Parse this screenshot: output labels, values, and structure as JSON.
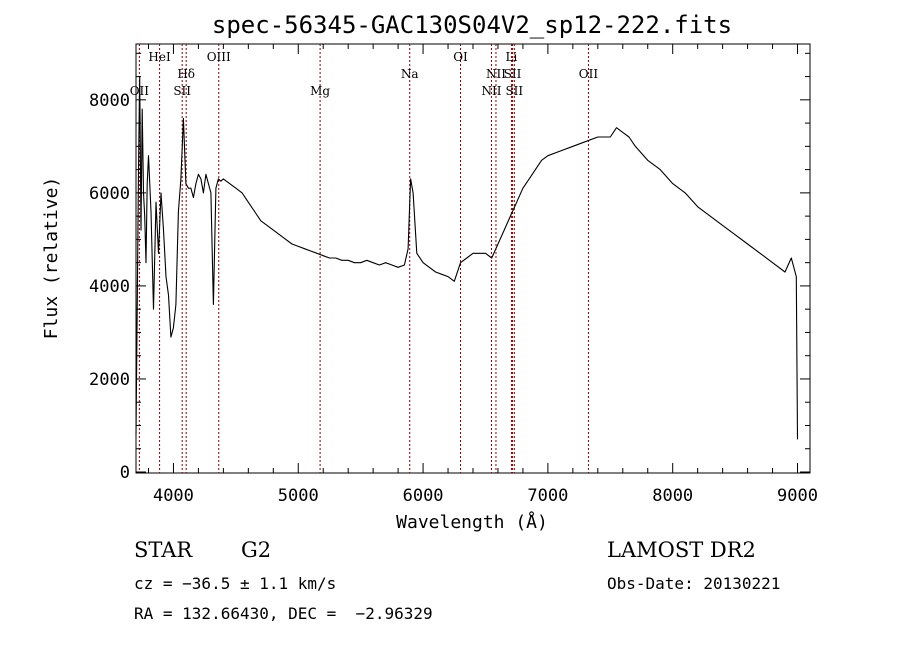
{
  "title": "spec-56345-GAC130S04V2_sp12-222.fits",
  "info": {
    "class": "STAR",
    "subclass": "G2",
    "survey": "LAMOST DR2",
    "redshift": "cz = −36.5 ± 1.1 km/s",
    "obsdate": "Obs-Date: 20130221",
    "coords": "RA = 132.66430, DEC =  −2.96329"
  },
  "chart_data": {
    "type": "line",
    "title": "spec-56345-GAC130S04V2_sp12-222.fits",
    "xlabel": "Wavelength (Å)",
    "ylabel": "Flux (relative)",
    "xlim": [
      3700,
      9100
    ],
    "ylim": [
      0,
      9200
    ],
    "xticks": [
      4000,
      5000,
      6000,
      7000,
      8000,
      9000
    ],
    "yticks": [
      0,
      2000,
      4000,
      6000,
      8000
    ],
    "grid": false,
    "line_color": "#000000",
    "marker_color": "#8b0000",
    "lines": [
      {
        "label": "OII",
        "wave": 3727,
        "row": 3
      },
      {
        "label": "HeI",
        "wave": 3889,
        "row": 0
      },
      {
        "label": "Hδ",
        "wave": 4102,
        "row": 1
      },
      {
        "label": "SII",
        "wave": 4070,
        "row": 2
      },
      {
        "label": "OIII",
        "wave": 4363,
        "row": 0
      },
      {
        "label": "Mg",
        "wave": 5175,
        "row": 2
      },
      {
        "label": "Na",
        "wave": 5893,
        "row": 1
      },
      {
        "label": "OI",
        "wave": 6300,
        "row": 0
      },
      {
        "label": "NII",
        "wave": 6584,
        "row": 1
      },
      {
        "label": "NII",
        "wave": 6548,
        "row": 2
      },
      {
        "label": "Li",
        "wave": 6708,
        "row": 0
      },
      {
        "label": "SII",
        "wave": 6717,
        "row": 1
      },
      {
        "label": "SII",
        "wave": 6731,
        "row": 2
      },
      {
        "label": "OII",
        "wave": 7325,
        "row": 1
      }
    ],
    "series": [
      {
        "x": [
          3700,
          3710,
          3720,
          3730,
          3740,
          3750,
          3760,
          3770,
          3780,
          3790,
          3800,
          3820,
          3840,
          3860,
          3880,
          3900,
          3920,
          3940,
          3960,
          3980,
          4000,
          4020,
          4040,
          4060,
          4080,
          4100,
          4120,
          4140,
          4160,
          4180,
          4200,
          4220,
          4240,
          4260,
          4280,
          4300,
          4320,
          4340,
          4360,
          4380,
          4400,
          4450,
          4500,
          4550,
          4600,
          4650,
          4700,
          4750,
          4800,
          4850,
          4900,
          4950,
          5000,
          5050,
          5100,
          5150,
          5200,
          5250,
          5300,
          5350,
          5400,
          5450,
          5500,
          5550,
          5600,
          5650,
          5700,
          5750,
          5800,
          5850,
          5880,
          5900,
          5920,
          5950,
          6000,
          6050,
          6100,
          6150,
          6200,
          6250,
          6300,
          6350,
          6400,
          6450,
          6500,
          6550,
          6600,
          6650,
          6700,
          6750,
          6800,
          6850,
          6900,
          6950,
          7000,
          7100,
          7200,
          7300,
          7400,
          7500,
          7550,
          7600,
          7650,
          7700,
          7800,
          7900,
          8000,
          8100,
          8200,
          8300,
          8400,
          8500,
          8600,
          8700,
          8800,
          8900,
          8950,
          8990,
          9000
        ],
        "y": [
          800,
          3500,
          6500,
          8500,
          5200,
          7800,
          6000,
          5500,
          4500,
          6200,
          6800,
          5600,
          3500,
          5800,
          4700,
          6000,
          5200,
          4200,
          3800,
          2900,
          3100,
          3600,
          5600,
          6300,
          7600,
          6200,
          6100,
          6100,
          5900,
          6200,
          6400,
          6300,
          6000,
          6400,
          6200,
          6000,
          3600,
          6100,
          6300,
          6250,
          6300,
          6200,
          6100,
          6000,
          5800,
          5600,
          5400,
          5300,
          5200,
          5100,
          5000,
          4900,
          4850,
          4800,
          4750,
          4700,
          4650,
          4600,
          4600,
          4550,
          4550,
          4500,
          4500,
          4550,
          4500,
          4450,
          4500,
          4450,
          4400,
          4450,
          4800,
          6300,
          6000,
          4700,
          4500,
          4400,
          4300,
          4250,
          4200,
          4100,
          4500,
          4600,
          4700,
          4700,
          4700,
          4600,
          4900,
          5200,
          5500,
          5800,
          6100,
          6300,
          6500,
          6700,
          6800,
          6900,
          7000,
          7100,
          7200,
          7200,
          7400,
          7300,
          7200,
          7000,
          6700,
          6500,
          6200,
          6000,
          5700,
          5500,
          5300,
          5100,
          4900,
          4700,
          4500,
          4300,
          4600,
          4200,
          700
        ]
      }
    ]
  }
}
